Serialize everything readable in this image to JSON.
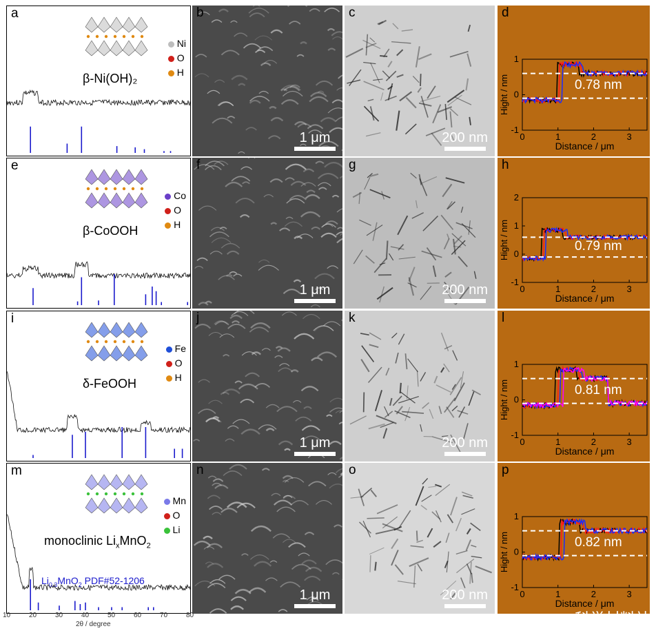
{
  "rows": [
    {
      "xrd_label": "a",
      "sem_label": "b",
      "tem_label": "c",
      "afm_label": "d",
      "phase": "β-Ni(OH)₂",
      "legend": [
        {
          "el": "Ni",
          "color": "#bdbdbd"
        },
        {
          "el": "O",
          "color": "#d0201a"
        },
        {
          "el": "H",
          "color": "#e08a12"
        }
      ],
      "sticks": [
        [
          19,
          0.85
        ],
        [
          33,
          0.3
        ],
        [
          38.5,
          0.85
        ],
        [
          52,
          0.22
        ],
        [
          59,
          0.18
        ],
        [
          62.5,
          0.12
        ],
        [
          70,
          0.06
        ],
        [
          72.5,
          0.06
        ]
      ],
      "afm_value": "0.78 nm",
      "afm_yticks": [
        "1",
        "0",
        "-1"
      ]
    },
    {
      "xrd_label": "e",
      "sem_label": "f",
      "tem_label": "g",
      "afm_label": "h",
      "phase": "β-CoOOH",
      "legend": [
        {
          "el": "Co",
          "color": "#6a3fc8"
        },
        {
          "el": "O",
          "color": "#d0201a"
        },
        {
          "el": "H",
          "color": "#e08a12"
        }
      ],
      "sticks": [
        [
          20,
          0.55
        ],
        [
          37,
          0.12
        ],
        [
          38.5,
          0.9
        ],
        [
          45,
          0.15
        ],
        [
          51,
          1.0
        ],
        [
          63,
          0.35
        ],
        [
          65.5,
          0.6
        ],
        [
          67,
          0.45
        ],
        [
          69,
          0.1
        ],
        [
          79,
          0.1
        ]
      ],
      "afm_value": "0.79 nm",
      "afm_yticks": [
        "2",
        "1",
        "0",
        "-1"
      ]
    },
    {
      "xrd_label": "i",
      "sem_label": "j",
      "tem_label": "k",
      "afm_label": "l",
      "phase": "δ-FeOOH",
      "legend": [
        {
          "el": "Fe",
          "color": "#1f4fd8"
        },
        {
          "el": "O",
          "color": "#d0201a"
        },
        {
          "el": "H",
          "color": "#e08a12"
        }
      ],
      "sticks": [
        [
          20,
          0.1
        ],
        [
          35,
          0.75
        ],
        [
          40,
          0.85
        ],
        [
          54,
          1.0
        ],
        [
          63,
          1.0
        ],
        [
          74,
          0.3
        ],
        [
          77,
          0.3
        ]
      ],
      "afm_value": "0.81 nm",
      "afm_yticks": [
        "1",
        "0",
        "-1"
      ]
    },
    {
      "xrd_label": "m",
      "sem_label": "n",
      "tem_label": "o",
      "afm_label": "p",
      "phase_main": "monoclinic Li",
      "phase_sub": "x",
      "phase_end": "MnO",
      "phase_sub2": "2",
      "legend": [
        {
          "el": "Mn",
          "color": "#7a7ae8"
        },
        {
          "el": "O",
          "color": "#d0201a"
        },
        {
          "el": "Li",
          "color": "#3ac23a"
        }
      ],
      "sticks": [
        [
          19,
          1.0
        ],
        [
          22,
          0.25
        ],
        [
          30,
          0.15
        ],
        [
          36,
          0.3
        ],
        [
          38,
          0.2
        ],
        [
          40,
          0.25
        ],
        [
          45,
          0.1
        ],
        [
          50,
          0.1
        ],
        [
          54,
          0.1
        ],
        [
          64,
          0.1
        ],
        [
          66,
          0.1
        ]
      ],
      "pdf_text": "Li",
      "pdf_sub": "0.3",
      "pdf_rest": "MnO",
      "pdf_sub2": "2",
      "pdf_end": " PDF#52-1206",
      "afm_value": "0.82 nm",
      "afm_yticks": [
        "1",
        "0",
        "-1"
      ]
    }
  ],
  "scale_sem": "1 μm",
  "scale_tem": "200 nm",
  "afm_xlabel": "Distance / μm",
  "afm_ylabel": "Hight / nm",
  "afm_xticks": [
    "0",
    "1",
    "2",
    "3"
  ],
  "xrd_xticks": [
    "10",
    "20",
    "30",
    "40",
    "50",
    "60",
    "70",
    "80"
  ],
  "xrd_xlabel": "2θ / degree",
  "watermark": "科学材料站",
  "colors": {
    "stick": "#1a1acc",
    "afm_bg": "#b86a12",
    "trace_black": "#000000",
    "trace_red": "#ff1a1a",
    "trace_blue": "#1a2cff",
    "trace_magenta": "#ff00ff"
  }
}
